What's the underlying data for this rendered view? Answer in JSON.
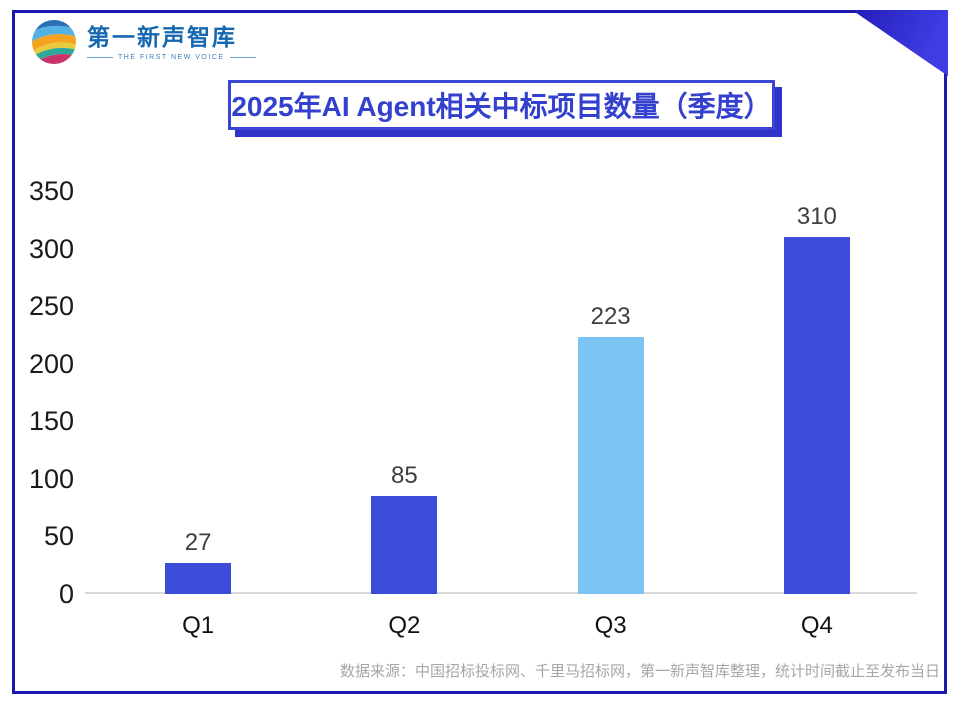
{
  "brand": {
    "logo_name": "第一新声智库",
    "logo_tagline": "THE FIRST NEW VOICE"
  },
  "title_box": {
    "title": "2025年AI Agent相关中标项目数量（季度）"
  },
  "footer": {
    "source": "数据来源：中国招标投标网、千里马招标网，第一新声智库整理，统计时间截止至发布当日"
  },
  "colors": {
    "frame_border": "#1C18AE",
    "accent_triangle": "#2E2BD0",
    "title_blue": "#3440CE",
    "bar_primary": "#3B4DD8",
    "bar_highlight": "#7CC4F3",
    "axis_line": "#D9D9D9",
    "value_label": "#3F3F3F",
    "footer_gray": "#A6A6A6"
  },
  "chart_data": {
    "type": "bar",
    "title": "2025年AI Agent相关中标项目数量（季度）",
    "categories": [
      "Q1",
      "Q2",
      "Q3",
      "Q4"
    ],
    "values": [
      27,
      85,
      223,
      310
    ],
    "bar_colors": [
      "#3B4DD8",
      "#3B4DD8",
      "#7CC4F3",
      "#3B4DD8"
    ],
    "xlabel": "",
    "ylabel": "",
    "ylim": [
      0,
      350
    ],
    "yticks": [
      0,
      50,
      100,
      150,
      200,
      250,
      300,
      350
    ],
    "grid": false,
    "legend": false,
    "value_labels": true
  }
}
